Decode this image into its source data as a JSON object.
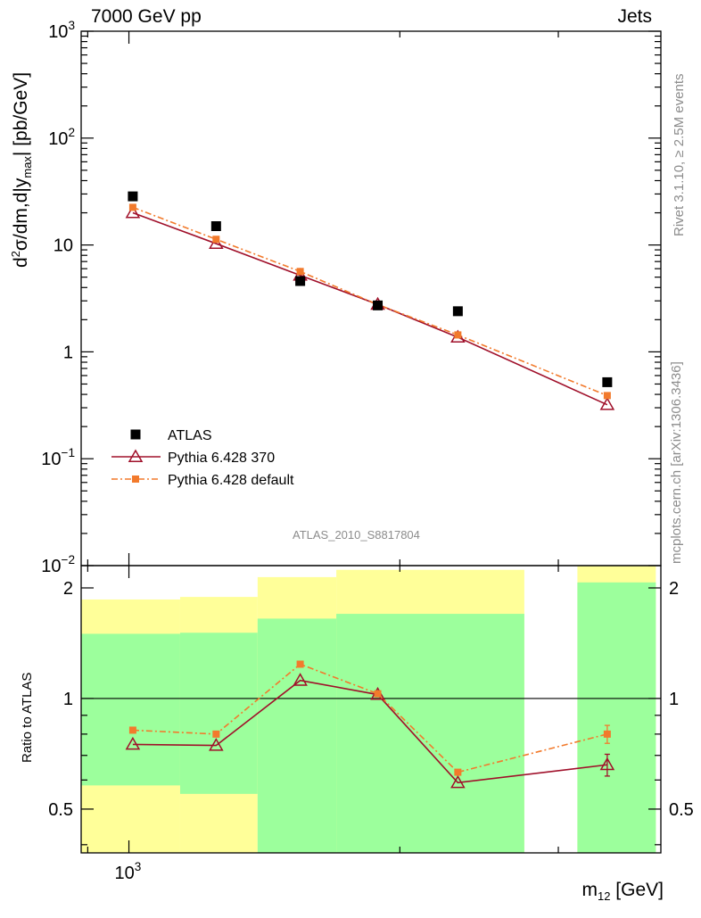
{
  "header": {
    "left": "7000 GeV pp",
    "right": "Jets"
  },
  "side_labels": {
    "rivet": "Rivet 3.1.10, ≥ 2.5M events",
    "mcplots": "mcplots.cern.ch [arXiv:1306.3436]"
  },
  "analysis_id": "ATLAS_2010_S8817804",
  "colors": {
    "data": "#000000",
    "pythia370": "#a0102a",
    "pythiadefault": "#f27a2c",
    "band_inner": "#9cff9c",
    "band_outer": "#ffff99",
    "frame": "#000000",
    "watermark": "#8c8c8c"
  },
  "chart_data": [
    {
      "name": "main",
      "type": "scatter",
      "yscale": "log",
      "ylim": [
        0.01,
        1000
      ],
      "y_ticks": [
        {
          "value": 1000,
          "label": "10",
          "sup": "3"
        },
        {
          "value": 100,
          "label": "10",
          "sup": "2"
        },
        {
          "value": 10,
          "label": "10",
          "sup": ""
        },
        {
          "value": 1,
          "label": "1",
          "sup": ""
        },
        {
          "value": 0.1,
          "label": "10",
          "sup": "−1"
        },
        {
          "value": 0.01,
          "label": "10",
          "sup": "−2"
        }
      ],
      "ylabel": {
        "p1": "d",
        "p1sup": "2",
        "p2": "σ/dm,d|y",
        "p2sub": "max",
        "p3": "| [pb/GeV]"
      },
      "x": [
        1010,
        1250,
        1550,
        1890,
        2320,
        3400
      ],
      "series": [
        {
          "name": "ATLAS",
          "key": "data",
          "marker": "square",
          "values": [
            28.5,
            15.0,
            4.6,
            2.72,
            2.4,
            0.52
          ]
        },
        {
          "name": "Pythia 6.428 370",
          "key": "pythia370",
          "marker": "triangle",
          "line": "solid",
          "values": [
            20.0,
            10.3,
            5.2,
            2.78,
            1.37,
            0.32
          ]
        },
        {
          "name": "Pythia 6.428 default",
          "key": "pythiadefault",
          "marker": "square-small",
          "line": "dashdot",
          "values": [
            22.5,
            11.3,
            5.65,
            2.77,
            1.44,
            0.39
          ]
        }
      ],
      "legend_position": "lower-left"
    },
    {
      "name": "ratio",
      "type": "line",
      "ylabel": "Ratio to ATLAS",
      "ylim": [
        0.38,
        2.3
      ],
      "y_ticks": [
        {
          "value": 2,
          "label": "2"
        },
        {
          "value": 1,
          "label": "1"
        },
        {
          "value": 0.5,
          "label": "0.5"
        }
      ],
      "reference_line": 1,
      "xlim": [
        885,
        3900
      ],
      "x_ticks": [
        {
          "value": 1000,
          "label": "10",
          "sup": "3"
        }
      ],
      "xlabel": {
        "p1": "m",
        "p1sub": "12",
        "p2": " [GeV]"
      },
      "x": [
        1010,
        1250,
        1550,
        1890,
        2320,
        3400
      ],
      "uncertainty_bands": [
        {
          "x_range": [
            885,
            1140
          ],
          "inner": [
            0.58,
            1.5
          ],
          "outer": [
            0.38,
            1.86
          ]
        },
        {
          "x_range": [
            1140,
            1390
          ],
          "inner": [
            0.55,
            1.51
          ],
          "outer": [
            0.38,
            1.89
          ]
        },
        {
          "x_range": [
            1390,
            1700
          ],
          "inner": [
            0.38,
            1.65
          ],
          "outer": [
            0.37,
            2.14
          ]
        },
        {
          "x_range": [
            1700,
            2750
          ],
          "inner": [
            0.38,
            1.7
          ],
          "outer": [
            0.38,
            2.24
          ]
        },
        {
          "x_range": [
            3150,
            3850
          ],
          "inner": [
            0.38,
            2.07
          ],
          "outer": [
            0.38,
            2.3
          ]
        }
      ],
      "series": [
        {
          "name": "Pythia 6.428 370",
          "key": "pythia370",
          "marker": "triangle",
          "line": "solid",
          "values": [
            0.75,
            0.745,
            1.12,
            1.025,
            0.59,
            0.66
          ],
          "err_last": 0.045
        },
        {
          "name": "Pythia 6.428 default",
          "key": "pythiadefault",
          "marker": "square-small",
          "line": "dashdot",
          "values": [
            0.82,
            0.8,
            1.24,
            1.03,
            0.63,
            0.8
          ],
          "err_last": 0.045
        }
      ]
    }
  ]
}
